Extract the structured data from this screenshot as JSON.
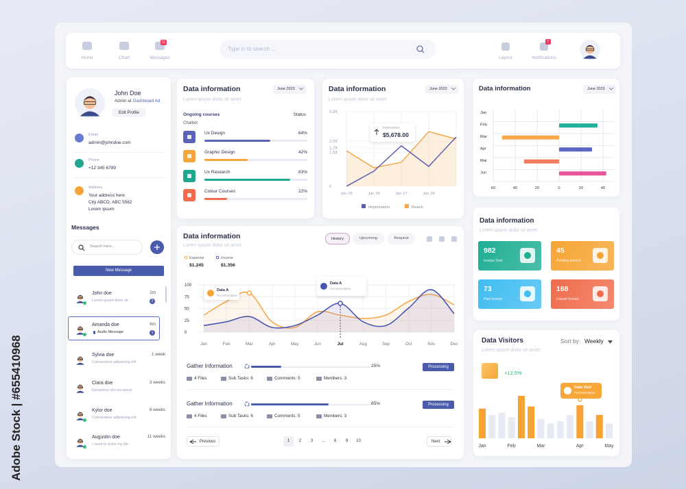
{
  "watermark": "Adobe Stock | #655410968",
  "nav": {
    "items": [
      "Home",
      "Chart",
      "Messages"
    ],
    "messages_badge": "11",
    "search": "Type in to search ...",
    "right_items": [
      "Layout",
      "Notifications"
    ],
    "notifications_badge": "7"
  },
  "profile": {
    "name": "John Doe",
    "role": "Admin at",
    "role_link": "Dashboard Ad",
    "button": "Edit Profile",
    "fields": [
      {
        "label": "Email",
        "lines": [
          "admin@johndoe.com"
        ]
      },
      {
        "label": "Phone",
        "lines": [
          "+12 345 6789"
        ]
      },
      {
        "label": "Address",
        "lines": [
          "Your address here",
          "City ABCD, ABC 5562",
          "Lorem ipsum"
        ]
      }
    ]
  },
  "messages": {
    "title": "Messages",
    "search": "Search here...",
    "button": "New Message",
    "list": [
      {
        "name": "John doe",
        "text": "Lorem ipsum dolor sit",
        "time": "2m",
        "badge": "2"
      },
      {
        "name": "Amanda doe",
        "text": "Audio Message",
        "time": "6m",
        "badge": "1"
      },
      {
        "name": "Sylvia doe",
        "text": "Consectetur adipiscing elit",
        "time": "1 week"
      },
      {
        "name": "Clara doe",
        "text": "Excepteur sint occaecat",
        "time": "3 weeks"
      },
      {
        "name": "Kylor doe",
        "text": "Consectetur adipiscing elit",
        "time": "8 weeks"
      },
      {
        "name": "Augustin doe",
        "text": "I need to solve my life",
        "time": "11 weeks"
      }
    ]
  },
  "courses_card": {
    "title": "Data information",
    "subtitle": "Lorem ipsum dolor sit amet",
    "date": "June 2023",
    "columns": [
      "Ongoing courses",
      "Status"
    ],
    "group": "Chatbot"
  },
  "line_card": {
    "title": "Data information",
    "subtitle": "Lorem ipsum dolor sit amet",
    "date": "June 2023",
    "tooltip": {
      "label": "Impression",
      "value": "$5,678.00"
    }
  },
  "gantt_card": {
    "title": "Data information",
    "date": "June 2023"
  },
  "wave_card": {
    "title": "Data information",
    "subtitle": "Lorem ipsum dolor sit amet",
    "tabs": [
      "History",
      "Upcoming",
      "Request"
    ],
    "totals": [
      "$1.245",
      "$1.356"
    ],
    "annotations": [
      {
        "label": "Data A",
        "text": "Put Description"
      },
      {
        "label": "Data A",
        "text": "Put Description"
      }
    ]
  },
  "tasks": [
    {
      "title": "Gather Information",
      "value": 25,
      "value_label": "25%",
      "status": "Processing",
      "meta": [
        "4 Files",
        "Sub Tasks: 6",
        "Comments: 5",
        "Members: 3"
      ]
    },
    {
      "title": "Gather Information",
      "value": 65,
      "value_label": "65%",
      "status": "Processing",
      "meta": [
        "4 Files",
        "Sub Tasks: 6",
        "Comments: 5",
        "Members: 3"
      ]
    }
  ],
  "pagination": {
    "previous": "Previous",
    "pages": [
      "1",
      "2",
      "3",
      "...",
      "8",
      "9",
      "10"
    ],
    "next": "Next"
  },
  "stats_card": {
    "title": "Data information",
    "subtitle": "Lorem ipsum dolor sit amet",
    "tiles": [
      {
        "value": "982",
        "label": "Invoice Sent",
        "color": "#1fae94"
      },
      {
        "value": "45",
        "label": "Pending Invoice",
        "color": "#f6a534"
      },
      {
        "value": "73",
        "label": "Paid Invoice",
        "color": "#41bdf0"
      },
      {
        "value": "168",
        "label": "Unpaid Invoice",
        "color": "#f06c4c"
      }
    ]
  },
  "visitors_card": {
    "title": "Data Visitors",
    "subtitle": "Lorem ipsum dolor sit amet",
    "sort_label": "Sort by:",
    "sort_value": "Weekly",
    "growth": "+12.5%",
    "tooltip": {
      "label": "Data Visit",
      "text": "Put Description"
    }
  },
  "chart_data": [
    {
      "type": "progress",
      "categories": [
        "Ux Design",
        "Graphic Design",
        "Ux Research",
        "Colour Courses"
      ],
      "values": [
        64,
        42,
        83,
        22
      ],
      "value_labels": [
        "64%",
        "42%",
        "83%",
        "22%"
      ],
      "colors": [
        "#5b63b7",
        "#f5a53a",
        "#1fa88f",
        "#f26b4f"
      ],
      "xlim": [
        0,
        100
      ]
    },
    {
      "type": "line",
      "categories": [
        "Jan 25",
        "Jan 26",
        "Jan 27",
        "Jan 28",
        null
      ],
      "ylim": [
        0,
        3300
      ],
      "yticks": [
        0,
        {
          "value": 1500,
          "label": "1,5K"
        },
        {
          "value": 1700,
          "label": "1,7K"
        },
        {
          "value": 2000,
          "label": "2,0K"
        },
        {
          "value": 3300,
          "label": "3,3K"
        }
      ],
      "grid": true,
      "series": [
        {
          "name": "Impressions",
          "color": "#5b5fb0",
          "values": [
            0,
            670,
            1790,
            880,
            2180
          ]
        },
        {
          "name": "Reach",
          "color": "#f4a84a",
          "values": [
            1570,
            820,
            1060,
            2420,
            2090
          ]
        }
      ]
    },
    {
      "type": "hbar",
      "categories": [
        "Jan",
        "Feb",
        "Mar",
        "Apr",
        "Mai",
        "Jun"
      ],
      "values": [
        null,
        35,
        -52,
        30,
        -32,
        43
      ],
      "colors": [
        null,
        "#21b39a",
        "#f6a94e",
        "#5a67c0",
        "#f27d5e",
        "#e8559a"
      ],
      "xlim": [
        -60,
        50
      ],
      "xticks": [
        {
          "value": -60,
          "label": "60"
        },
        {
          "value": -40,
          "label": "40"
        },
        {
          "value": -20,
          "label": "20"
        },
        0,
        20,
        40
      ],
      "grid": true
    },
    {
      "type": "smooth-line",
      "categories": [
        "Jan",
        "Feb",
        "Mar",
        "Apr",
        "May",
        "Jun",
        "Jul",
        "Aug",
        "Sep",
        "Oct",
        "Nov",
        "Dec"
      ],
      "ylim": [
        0,
        100
      ],
      "yticks": [
        0,
        25,
        50,
        75,
        100
      ],
      "grid": true,
      "series": [
        {
          "name": "Expense",
          "color": "#f4a84a",
          "values": [
            36,
            65,
            83,
            22,
            10,
            43,
            36,
            29,
            36,
            65,
            80,
            58
          ]
        },
        {
          "name": "Income",
          "color": "#4a56b0",
          "values": [
            14,
            22,
            33,
            10,
            14,
            36,
            61,
            22,
            14,
            51,
            90,
            39
          ]
        }
      ]
    },
    {
      "type": "bar",
      "categories": [
        "Jan",
        null,
        null,
        "Feb",
        null,
        null,
        "Mar",
        null,
        null,
        null,
        "Apr",
        null,
        null,
        "May"
      ],
      "values": [
        70,
        55,
        60,
        50,
        100,
        75,
        45,
        35,
        40,
        55,
        78,
        40,
        55,
        35
      ],
      "colors": [
        "#f7a233",
        "#e8eaf3",
        "#e8eaf3",
        "#e8eaf3",
        "#f7a233",
        "#f7a233",
        "#e8eaf3",
        "#e8eaf3",
        "#e8eaf3",
        "#e8eaf3",
        "#f7a233",
        "#e8eaf3",
        "#f7a233",
        "#e8eaf3"
      ],
      "ylim": [
        0,
        100
      ]
    }
  ]
}
